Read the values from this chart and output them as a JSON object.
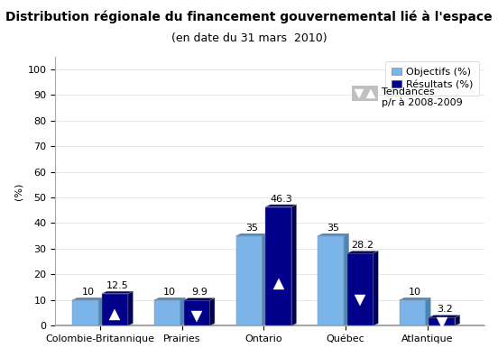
{
  "title_line1": "Distribution régionale du financement gouvernemental lié à l'espace",
  "title_line2": "(en date du 31 mars  2010)",
  "categories": [
    "Colombie-Britannique",
    "Prairies",
    "Ontario",
    "Québec",
    "Atlantique"
  ],
  "objectifs": [
    10,
    10,
    35,
    35,
    10
  ],
  "resultats": [
    12.5,
    9.9,
    46.3,
    28.2,
    3.2
  ],
  "trend_up": [
    true,
    false,
    true,
    false,
    false
  ],
  "color_objectifs": "#7ab4e8",
  "color_objectifs_dark": "#4a84b8",
  "color_resultats": "#00008b",
  "color_resultats_dark": "#000055",
  "color_trend_bg": "#c0c0c0",
  "ylabel": "(%)",
  "ylim": [
    0,
    105
  ],
  "yticks": [
    0,
    10,
    20,
    30,
    40,
    50,
    60,
    70,
    80,
    90,
    100
  ],
  "legend_objectifs": "Objectifs (%)",
  "legend_resultats": "Résultats (%)",
  "legend_tendances_line1": "Tendances",
  "legend_tendances_line2": "p/r à 2008-2009",
  "bar_width": 0.32,
  "title_fontsize": 10,
  "subtitle_fontsize": 9,
  "axis_fontsize": 8,
  "label_fontsize": 8,
  "tick_fontsize": 8,
  "legend_fontsize": 8
}
